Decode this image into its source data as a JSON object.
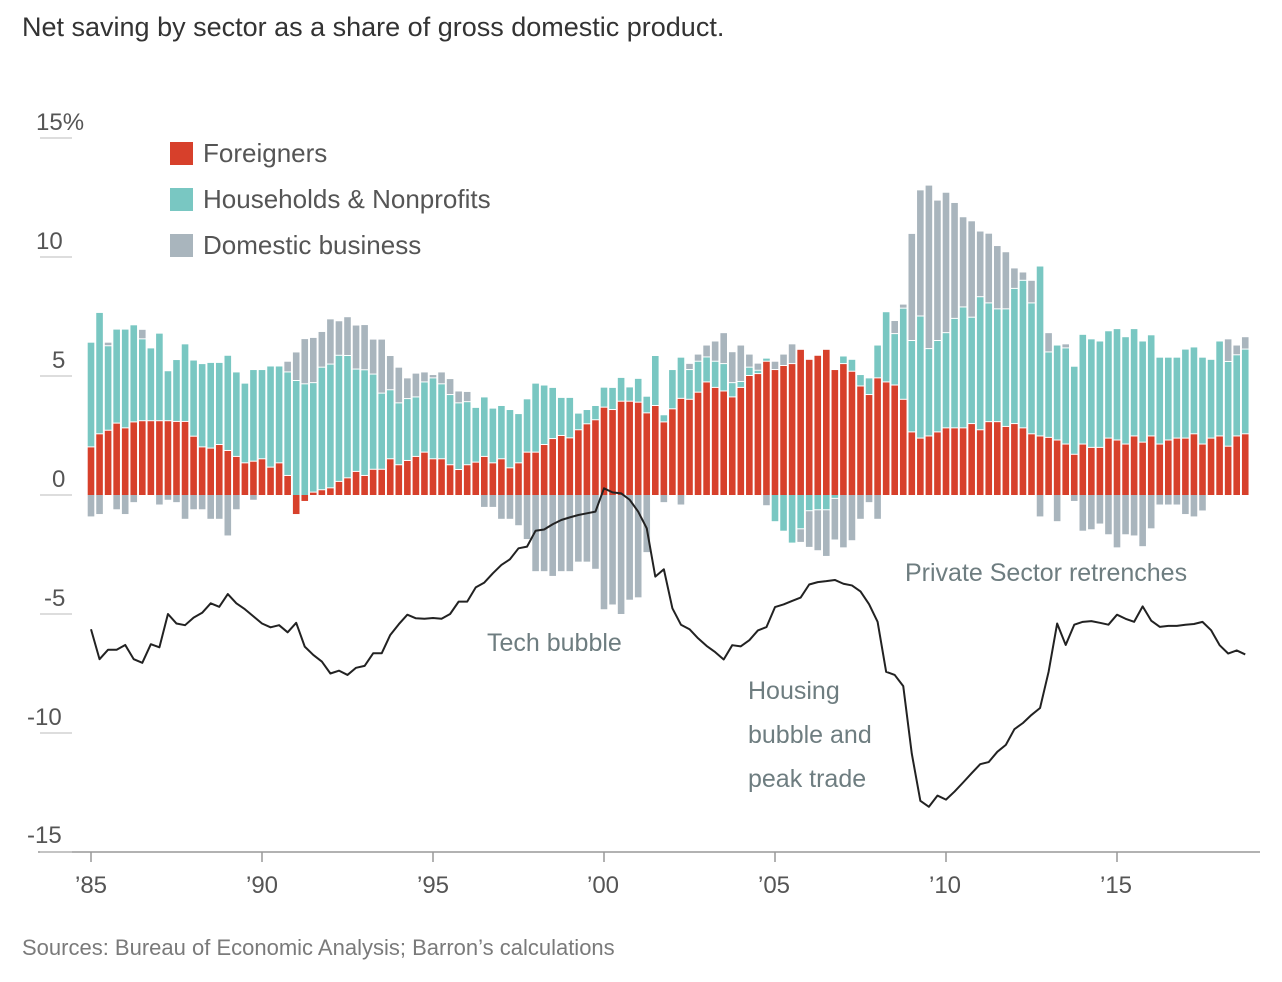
{
  "title": "Net saving by sector as a share of gross domestic product.",
  "source": "Sources: Bureau of Economic Analysis; Barron’s calculations",
  "colors": {
    "foreigners": "#d7402b",
    "households": "#79c7c2",
    "business": "#a9b5bd",
    "line": "#222222",
    "axis": "#999999"
  },
  "chart_data": {
    "type": "bar",
    "stacked": true,
    "ylim": [
      -15,
      15
    ],
    "legend_position": "top-left",
    "grid": false,
    "y_ticks": [
      {
        "value": 15,
        "label": "15%"
      },
      {
        "value": 10,
        "label": "10"
      },
      {
        "value": 5,
        "label": "5"
      },
      {
        "value": 0,
        "label": "0"
      },
      {
        "value": -5,
        "label": "-5"
      },
      {
        "value": -10,
        "label": "-10"
      },
      {
        "value": -15,
        "label": "-15"
      }
    ],
    "x_ticks": [
      {
        "value": "1985Q1",
        "label": "’85"
      },
      {
        "value": "1990Q1",
        "label": "’90"
      },
      {
        "value": "1995Q1",
        "label": "’95"
      },
      {
        "value": "2000Q1",
        "label": "’00"
      },
      {
        "value": "2005Q1",
        "label": "’05"
      },
      {
        "value": "2010Q1",
        "label": "’10"
      },
      {
        "value": "2015Q1",
        "label": "’15"
      }
    ],
    "x": [
      "1985Q1",
      "1985Q2",
      "1985Q3",
      "1985Q4",
      "1986Q1",
      "1986Q2",
      "1986Q3",
      "1986Q4",
      "1987Q1",
      "1987Q2",
      "1987Q3",
      "1987Q4",
      "1988Q1",
      "1988Q2",
      "1988Q3",
      "1988Q4",
      "1989Q1",
      "1989Q2",
      "1989Q3",
      "1989Q4",
      "1990Q1",
      "1990Q2",
      "1990Q3",
      "1990Q4",
      "1991Q1",
      "1991Q2",
      "1991Q3",
      "1991Q4",
      "1992Q1",
      "1992Q2",
      "1992Q3",
      "1992Q4",
      "1993Q1",
      "1993Q2",
      "1993Q3",
      "1993Q4",
      "1994Q1",
      "1994Q2",
      "1994Q3",
      "1994Q4",
      "1995Q1",
      "1995Q2",
      "1995Q3",
      "1995Q4",
      "1996Q1",
      "1996Q2",
      "1996Q3",
      "1996Q4",
      "1997Q1",
      "1997Q2",
      "1997Q3",
      "1997Q4",
      "1998Q1",
      "1998Q2",
      "1998Q3",
      "1998Q4",
      "1999Q1",
      "1999Q2",
      "1999Q3",
      "1999Q4",
      "2000Q1",
      "2000Q2",
      "2000Q3",
      "2000Q4",
      "2001Q1",
      "2001Q2",
      "2001Q3",
      "2001Q4",
      "2002Q1",
      "2002Q2",
      "2002Q3",
      "2002Q4",
      "2003Q1",
      "2003Q2",
      "2003Q3",
      "2003Q4",
      "2004Q1",
      "2004Q2",
      "2004Q3",
      "2004Q4",
      "2005Q1",
      "2005Q2",
      "2005Q3",
      "2005Q4",
      "2006Q1",
      "2006Q2",
      "2006Q3",
      "2006Q4",
      "2007Q1",
      "2007Q2",
      "2007Q3",
      "2007Q4",
      "2008Q1",
      "2008Q2",
      "2008Q3",
      "2008Q4",
      "2009Q1",
      "2009Q2",
      "2009Q3",
      "2009Q4",
      "2010Q1",
      "2010Q2",
      "2010Q3",
      "2010Q4",
      "2011Q1",
      "2011Q2",
      "2011Q3",
      "2011Q4",
      "2012Q1",
      "2012Q2",
      "2012Q3",
      "2012Q4",
      "2013Q1",
      "2013Q2",
      "2013Q3",
      "2013Q4",
      "2014Q1",
      "2014Q2",
      "2014Q3",
      "2014Q4",
      "2015Q1",
      "2015Q2",
      "2015Q3",
      "2015Q4",
      "2016Q1",
      "2016Q2",
      "2016Q3",
      "2016Q4",
      "2017Q1",
      "2017Q2",
      "2017Q3",
      "2017Q4",
      "2018Q1",
      "2018Q2",
      "2018Q3",
      "2018Q4"
    ],
    "series": [
      {
        "name": "Foreigners",
        "key": "foreigners",
        "values": [
          2.0,
          2.55,
          2.7,
          3.0,
          2.8,
          3.05,
          3.1,
          3.1,
          3.1,
          3.1,
          3.07,
          3.07,
          2.45,
          2.0,
          1.95,
          2.1,
          1.85,
          1.6,
          1.33,
          1.4,
          1.5,
          1.15,
          1.33,
          0.8,
          -0.8,
          -0.25,
          0.1,
          0.2,
          0.28,
          0.55,
          0.7,
          0.97,
          0.8,
          1.06,
          1.06,
          1.5,
          1.25,
          1.43,
          1.6,
          1.78,
          1.5,
          1.5,
          1.25,
          1.05,
          1.25,
          1.36,
          1.6,
          1.33,
          1.5,
          1.12,
          1.33,
          1.78,
          1.78,
          2.1,
          2.35,
          2.48,
          2.38,
          2.72,
          2.97,
          3.14,
          3.67,
          3.57,
          3.92,
          3.92,
          3.88,
          3.43,
          3.74,
          3.05,
          3.6,
          4.04,
          4.0,
          4.3,
          4.73,
          4.5,
          4.35,
          4.1,
          4.5,
          5.0,
          5.08,
          5.6,
          5.25,
          5.42,
          5.5,
          6.1,
          5.68,
          5.85,
          6.1,
          5.25,
          5.5,
          5.18,
          4.56,
          4.2,
          4.9,
          4.73,
          4.6,
          4.0,
          2.63,
          2.37,
          2.46,
          2.63,
          2.8,
          2.8,
          2.8,
          2.98,
          2.72,
          3.06,
          3.06,
          2.86,
          2.98,
          2.8,
          2.55,
          2.46,
          2.4,
          2.29,
          2.12,
          1.69,
          2.12,
          1.98,
          1.98,
          2.37,
          2.29,
          2.12,
          2.46,
          2.2,
          2.46,
          2.12,
          2.29,
          2.37,
          2.37,
          2.55,
          2.12,
          2.37,
          2.46,
          2.03,
          2.46,
          2.55
        ]
      },
      {
        "name": "Households & Nonprofits",
        "key": "households",
        "values": [
          4.4,
          5.1,
          3.55,
          3.95,
          4.15,
          4.08,
          3.44,
          3.06,
          3.68,
          2.1,
          2.6,
          3.26,
          3.2,
          3.5,
          3.6,
          3.45,
          4.0,
          3.55,
          3.35,
          3.85,
          3.75,
          4.25,
          4.07,
          4.35,
          4.79,
          4.65,
          4.6,
          5.15,
          5.2,
          5.3,
          5.14,
          4.3,
          4.44,
          4.0,
          3.2,
          2.9,
          2.6,
          2.6,
          2.5,
          2.95,
          3.4,
          3.15,
          2.95,
          2.8,
          2.65,
          2.3,
          2.5,
          2.3,
          2.24,
          2.45,
          2.07,
          2.24,
          2.9,
          2.5,
          2.15,
          1.6,
          1.7,
          0.7,
          0.6,
          0.6,
          0.84,
          0.93,
          1.0,
          0.6,
          1.0,
          0.7,
          2.1,
          0.3,
          1.65,
          1.73,
          1.25,
          1.3,
          1.05,
          1.1,
          1.15,
          0.6,
          0.25,
          0.35,
          0.14,
          0.13,
          -1.1,
          -1.5,
          -2.0,
          -1.4,
          -0.64,
          -0.6,
          -0.6,
          -0.12,
          0.32,
          0.5,
          0.48,
          0.7,
          1.38,
          2.95,
          2.16,
          3.83,
          3.84,
          5.13,
          3.67,
          3.84,
          4.0,
          4.6,
          5.08,
          4.47,
          5.59,
          4.99,
          4.74,
          4.94,
          5.68,
          6.2,
          5.5,
          7.14,
          3.59,
          3.99,
          4.04,
          3.7,
          4.61,
          4.56,
          4.47,
          4.51,
          4.68,
          4.51,
          4.51,
          4.25,
          4.25,
          3.65,
          3.48,
          3.4,
          3.74,
          3.65,
          3.65,
          3.31,
          3.99,
          3.56,
          3.41,
          3.56
        ]
      },
      {
        "name": "Domestic business",
        "key": "business",
        "values": [
          -0.9,
          -0.8,
          0.15,
          -0.6,
          -0.8,
          -0.3,
          0.4,
          0,
          -0.4,
          -0.2,
          -0.3,
          -1.0,
          -0.6,
          -0.6,
          -1.0,
          -1.0,
          -1.7,
          -0.6,
          0,
          -0.2,
          0,
          0,
          0,
          0.45,
          1.2,
          1.9,
          1.9,
          1.5,
          1.9,
          1.45,
          1.63,
          1.85,
          1.9,
          1.47,
          2.27,
          1.44,
          1.5,
          0.87,
          1.0,
          0.42,
          0.14,
          0.5,
          0.67,
          0.5,
          0.43,
          0,
          -0.5,
          -0.5,
          -1.0,
          -1.0,
          -1.27,
          -1.85,
          -3.2,
          -3.2,
          -3.4,
          -3.2,
          -3.2,
          -2.8,
          -2.8,
          -3.1,
          -4.8,
          -4.6,
          -5.0,
          -4.4,
          -4.3,
          -2.4,
          0,
          -0.3,
          0,
          -0.4,
          0.26,
          0.3,
          0.5,
          0.85,
          1.3,
          1.3,
          1.53,
          0.55,
          0.3,
          -0.43,
          0.35,
          0.48,
          0.83,
          -0.57,
          -1.54,
          -1.72,
          -1.96,
          -1.75,
          -2.2,
          -1.9,
          -1.0,
          -0.3,
          -1.0,
          0,
          0.55,
          0.17,
          4.5,
          5.3,
          6.87,
          5.9,
          5.9,
          4.87,
          3.79,
          4.05,
          2.76,
          2.93,
          2.66,
          2.4,
          0.86,
          0.35,
          0.95,
          -0.9,
          0.81,
          -1.1,
          0.17,
          -0.25,
          -1.5,
          -1.44,
          -1.2,
          -1.65,
          -2.2,
          -1.65,
          -1.7,
          -2.15,
          -1.4,
          -0.4,
          -0.4,
          -0.4,
          -0.8,
          -0.9,
          -0.65,
          0,
          0,
          0.95,
          0.41,
          0.52
        ]
      }
    ],
    "line": {
      "type": "line",
      "values": [
        -5.64,
        -6.9,
        -6.5,
        -6.5,
        -6.3,
        -6.9,
        -7.05,
        -6.27,
        -6.4,
        -5.0,
        -5.4,
        -5.47,
        -5.15,
        -4.95,
        -4.55,
        -4.7,
        -4.16,
        -4.55,
        -4.8,
        -5.1,
        -5.4,
        -5.56,
        -5.47,
        -5.77,
        -5.37,
        -6.37,
        -6.72,
        -7.0,
        -7.5,
        -7.38,
        -7.56,
        -7.26,
        -7.18,
        -6.65,
        -6.65,
        -5.88,
        -5.43,
        -5.03,
        -5.18,
        -5.2,
        -5.17,
        -5.2,
        -5.0,
        -4.48,
        -4.48,
        -3.88,
        -3.68,
        -3.29,
        -2.94,
        -2.7,
        -2.24,
        -2.17,
        -1.5,
        -1.45,
        -1.23,
        -1.05,
        -0.94,
        -0.84,
        -0.77,
        -0.7,
        0.28,
        0.11,
        0.07,
        -0.2,
        -0.7,
        -1.4,
        -3.43,
        -3.12,
        -4.76,
        -5.45,
        -5.64,
        -6.02,
        -6.34,
        -6.6,
        -6.91,
        -6.31,
        -6.36,
        -6.1,
        -5.69,
        -5.55,
        -4.71,
        -4.6,
        -4.45,
        -4.31,
        -3.76,
        -3.66,
        -3.62,
        -3.57,
        -3.73,
        -3.8,
        -4.05,
        -4.59,
        -5.33,
        -7.43,
        -7.56,
        -8.03,
        -10.87,
        -12.85,
        -13.1,
        -12.63,
        -12.8,
        -12.46,
        -12.08,
        -11.69,
        -11.31,
        -11.22,
        -10.79,
        -10.5,
        -9.84,
        -9.58,
        -9.24,
        -8.95,
        -7.43,
        -5.4,
        -6.3,
        -5.45,
        -5.33,
        -5.3,
        -5.37,
        -5.45,
        -5.03,
        -5.2,
        -5.33,
        -4.68,
        -5.28,
        -5.54,
        -5.5,
        -5.5,
        -5.45,
        -5.42,
        -5.33,
        -5.68,
        -6.31,
        -6.66,
        -6.53,
        -6.7
      ]
    },
    "annotations": {
      "tech": "Tech bubble",
      "housing": [
        "Housing",
        "bubble and",
        "peak trade"
      ],
      "private": "Private Sector retrenches"
    }
  }
}
